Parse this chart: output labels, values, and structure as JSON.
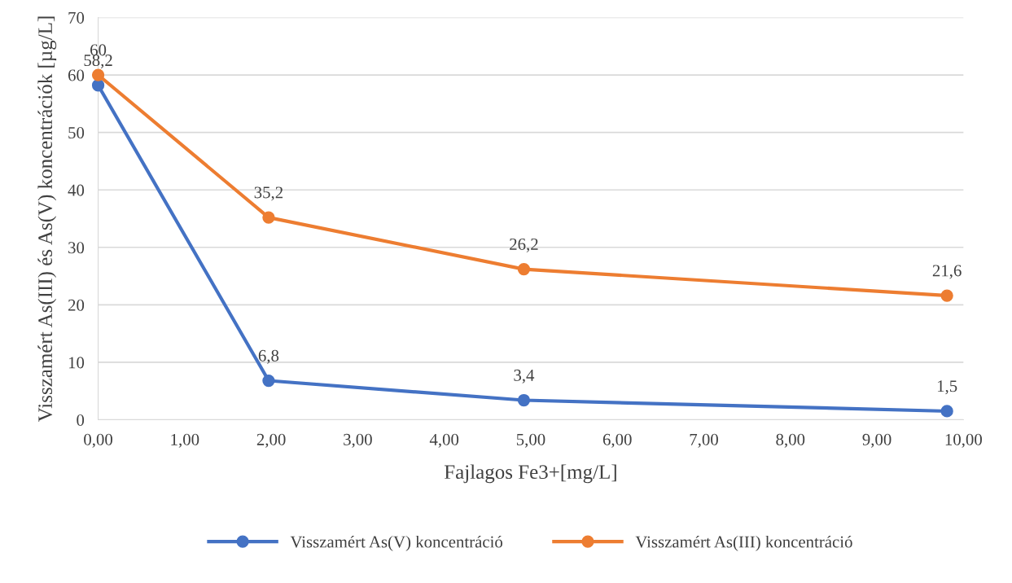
{
  "chart_data": {
    "type": "line",
    "xlabel": "Fajlagos Fe3+[mg/L]",
    "ylabel": "Visszamért As(III) és As(V) koncentrációk [µg/L]",
    "x": [
      0,
      1.97,
      4.92,
      9.81
    ],
    "series": [
      {
        "name": "Visszamért As(V) koncentráció",
        "color": "#4472c4",
        "values": [
          58.2,
          6.8,
          3.4,
          1.5
        ],
        "value_labels": [
          "58,2",
          "6,8",
          "3,4",
          "1,5"
        ]
      },
      {
        "name": "Visszamért As(III) koncentráció",
        "color": "#ed7d31",
        "values": [
          60,
          35.2,
          26.2,
          21.6
        ],
        "value_labels": [
          "60",
          "35,2",
          "26,2",
          "21,6"
        ]
      }
    ],
    "xlim": [
      0,
      10
    ],
    "xticks": [
      {
        "value": 0,
        "label": "0,00"
      },
      {
        "value": 1,
        "label": "1,00"
      },
      {
        "value": 2,
        "label": "2,00"
      },
      {
        "value": 3,
        "label": "3,00"
      },
      {
        "value": 4,
        "label": "4,00"
      },
      {
        "value": 5,
        "label": "5,00"
      },
      {
        "value": 6,
        "label": "6,00"
      },
      {
        "value": 7,
        "label": "7,00"
      },
      {
        "value": 8,
        "label": "8,00"
      },
      {
        "value": 9,
        "label": "9,00"
      },
      {
        "value": 10,
        "label": "10,00"
      }
    ],
    "ylim": [
      0,
      70
    ],
    "yticks": [
      0,
      10,
      20,
      30,
      40,
      50,
      60,
      70
    ],
    "grid": "y",
    "legend": "bottom",
    "marker": "circle",
    "line_style": "solid"
  }
}
